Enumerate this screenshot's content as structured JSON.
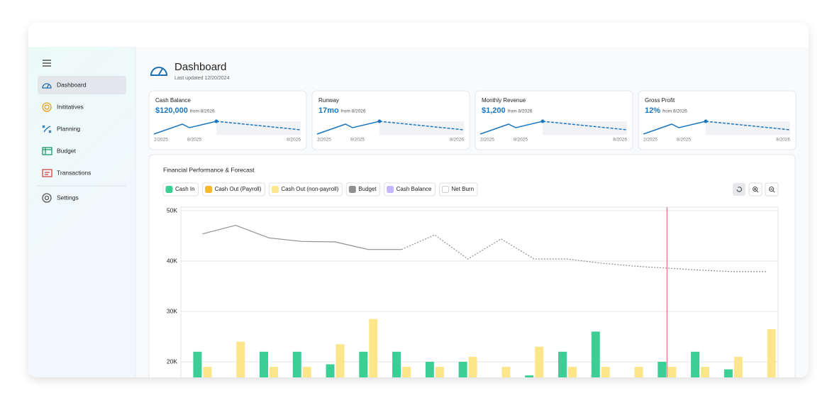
{
  "sidebar": {
    "items": [
      "Dashboard",
      "Inititatives",
      "Planning",
      "Budget",
      "Transactions",
      "Settings"
    ],
    "selected": 0
  },
  "header": {
    "title": "Dashboard",
    "subtitle": "Last updated 12/20/2024"
  },
  "kpis": [
    {
      "label": "Cash Balance",
      "value": "$120,000",
      "note": "from 8/2026",
      "axis": [
        "2/2025",
        "8/2025",
        "8/2026"
      ]
    },
    {
      "label": "Runway",
      "value": "17mo",
      "note": "from 8/2026",
      "axis": [
        "2/2025",
        "8/2025",
        "8/2026"
      ]
    },
    {
      "label": "Monthly Revenue",
      "value": "$1,200",
      "note": "from 8/2026",
      "axis": [
        "2/2025",
        "8/2025",
        "8/2026"
      ]
    },
    {
      "label": "Gross Profit",
      "value": "12%",
      "note": "from 8/2026",
      "axis": [
        "2/2025",
        "8/2025",
        "8/2026"
      ]
    }
  ],
  "chart_data": {
    "type": "bar",
    "title": "Financial Performance & Forecast",
    "categories": [
      null,
      null,
      null,
      null,
      null,
      null,
      null,
      null,
      null,
      null,
      null,
      null,
      null,
      null,
      null,
      null,
      null,
      null
    ],
    "series": [
      {
        "name": "Cash In",
        "type": "bar",
        "color": "#3ccf95",
        "values": [
          22000,
          null,
          22000,
          22000,
          19500,
          22000,
          22000,
          20000,
          20000,
          null,
          17300,
          22000,
          26000,
          null,
          20000,
          22000,
          18500,
          null
        ]
      },
      {
        "name": "Cash Out (Payroll)",
        "type": "bar",
        "color": "#f6b82c",
        "values": [
          null,
          null,
          null,
          null,
          null,
          null,
          null,
          null,
          null,
          null,
          null,
          null,
          null,
          null,
          null,
          null,
          null,
          null
        ]
      },
      {
        "name": "Cash Out (non-payroll)",
        "type": "bar",
        "color": "#fde68a",
        "values": [
          19000,
          24000,
          19000,
          19000,
          23500,
          28500,
          19000,
          19000,
          21000,
          19000,
          23000,
          19000,
          19000,
          19000,
          19000,
          19000,
          21000,
          26500
        ]
      },
      {
        "name": "Budget",
        "type": "line",
        "color": "#8f8f8f",
        "values": [
          45400,
          47100,
          44600,
          43900,
          43800,
          42300,
          42300,
          45200,
          40400,
          44400,
          40400,
          40400,
          39600,
          39000,
          38600,
          38200,
          37900,
          37900
        ]
      },
      {
        "name": "Cash Balance",
        "type": "line",
        "color": "#c4b5fd",
        "values": [
          null,
          null,
          null,
          null,
          null,
          null,
          null,
          null,
          null,
          null,
          null,
          null,
          null,
          null,
          null,
          null,
          null,
          null
        ]
      },
      {
        "name": "Net Burn",
        "type": "line",
        "color": "#ffffff",
        "values": [
          null,
          null,
          null,
          null,
          null,
          null,
          null,
          null,
          null,
          null,
          null,
          null,
          null,
          null,
          null,
          null,
          null,
          null
        ]
      }
    ],
    "ylim": [
      17000,
      50000
    ],
    "yticks": [
      {
        "value": 20000,
        "label": "20K"
      },
      {
        "value": 30000,
        "label": "30K"
      },
      {
        "value": 40000,
        "label": "40K"
      },
      {
        "value": 50000,
        "label": "50K"
      }
    ],
    "grid": true,
    "forecast_from": 6,
    "today_index": 14,
    "today_color": "#e05a67"
  }
}
